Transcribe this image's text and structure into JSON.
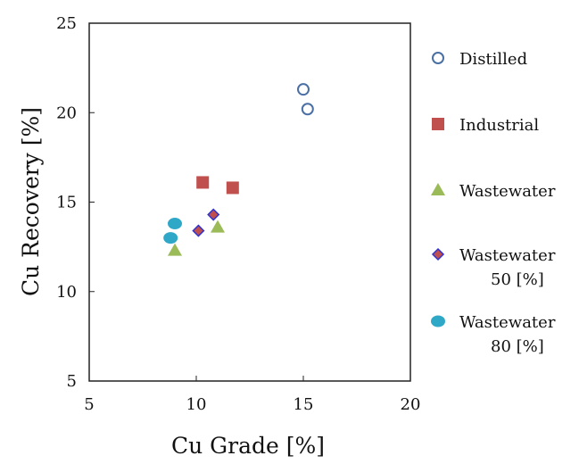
{
  "chart_data": {
    "type": "scatter",
    "title": "",
    "xlabel": "Cu Grade [%]",
    "ylabel": "Cu Recovery [%]",
    "xlim": [
      5,
      20
    ],
    "ylim": [
      5,
      25
    ],
    "xticks": [
      5,
      10,
      15,
      20
    ],
    "yticks": [
      5,
      10,
      15,
      20,
      25
    ],
    "grid": false,
    "legend_position": "right",
    "series": [
      {
        "name": "Distilled",
        "marker": "circle-open",
        "color": "#4a6fa5",
        "points": [
          {
            "x": 15.0,
            "y": 21.3
          },
          {
            "x": 15.2,
            "y": 20.2
          }
        ]
      },
      {
        "name": "Industrial",
        "marker": "square",
        "color": "#c0504d",
        "points": [
          {
            "x": 10.3,
            "y": 16.1
          },
          {
            "x": 11.7,
            "y": 15.8
          }
        ]
      },
      {
        "name": "Wastewater",
        "marker": "triangle",
        "color": "#9bbb59",
        "points": [
          {
            "x": 9.0,
            "y": 12.3
          },
          {
            "x": 11.0,
            "y": 13.6
          }
        ]
      },
      {
        "name": "Wastewater\n50 [%]",
        "marker": "diamond",
        "color": "#c0504d",
        "edge_color": "#3333cc",
        "points": [
          {
            "x": 10.1,
            "y": 13.4
          },
          {
            "x": 10.8,
            "y": 14.3
          }
        ]
      },
      {
        "name": "Wastewater\n80 [%]",
        "marker": "ellipse",
        "color": "#2fa8c8",
        "points": [
          {
            "x": 8.8,
            "y": 13.0
          },
          {
            "x": 9.0,
            "y": 13.8
          }
        ]
      }
    ]
  }
}
